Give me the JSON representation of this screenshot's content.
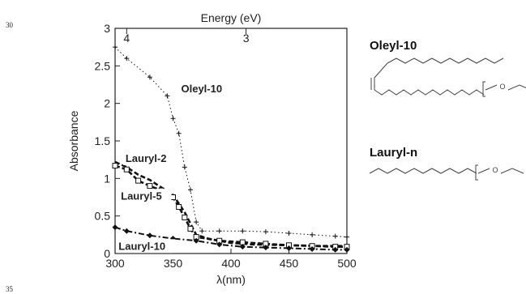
{
  "page": {
    "line_number_top": "30",
    "line_number_bottom": "35"
  },
  "chart_data": {
    "type": "line",
    "title": "",
    "xlabel": "λ(nm)",
    "ylabel": "Absorbance",
    "top_axis_label": "Energy (eV)",
    "xlim": [
      300,
      500
    ],
    "ylim": [
      0,
      3
    ],
    "x_ticks": [
      300,
      350,
      400,
      450,
      500
    ],
    "y_ticks": [
      0,
      0.5,
      1,
      1.5,
      2,
      2.5,
      3
    ],
    "top_ticks": [
      {
        "label": "4",
        "x_nm": 310
      },
      {
        "label": "3",
        "x_nm": 413
      }
    ],
    "grid": false,
    "series": [
      {
        "name": "Oleyl-10",
        "style": "dotted",
        "marker": "plus",
        "x": [
          300,
          310,
          330,
          345,
          350,
          355,
          360,
          365,
          370,
          375,
          390,
          410,
          430,
          450,
          470,
          490,
          500
        ],
        "y": [
          2.75,
          2.6,
          2.35,
          2.1,
          1.8,
          1.6,
          1.15,
          0.85,
          0.42,
          0.3,
          0.3,
          0.3,
          0.29,
          0.27,
          0.25,
          0.23,
          0.22
        ]
      },
      {
        "name": "Lauryl-2",
        "style": "dashed",
        "marker": "none",
        "x": [
          300,
          310,
          320,
          330,
          340,
          350,
          360,
          365,
          370,
          380,
          400,
          420,
          450,
          480,
          500
        ],
        "y": [
          1.22,
          1.15,
          1.05,
          0.98,
          0.88,
          0.78,
          0.55,
          0.4,
          0.25,
          0.2,
          0.14,
          0.12,
          0.11,
          0.1,
          0.1
        ]
      },
      {
        "name": "Lauryl-5",
        "style": "dashed",
        "marker": "open-square",
        "x": [
          300,
          310,
          320,
          330,
          340,
          345,
          350,
          355,
          360,
          365,
          370,
          390,
          410,
          430,
          450,
          470,
          490,
          500
        ],
        "y": [
          1.17,
          1.12,
          0.97,
          0.9,
          0.84,
          0.8,
          0.75,
          0.62,
          0.48,
          0.33,
          0.22,
          0.17,
          0.15,
          0.13,
          0.11,
          0.1,
          0.09,
          0.09
        ]
      },
      {
        "name": "Lauryl-10",
        "style": "dash-dot",
        "marker": "filled-diamond",
        "x": [
          300,
          310,
          330,
          350,
          370,
          390,
          410,
          430,
          450,
          470,
          490,
          500
        ],
        "y": [
          0.35,
          0.3,
          0.24,
          0.2,
          0.17,
          0.12,
          0.09,
          0.08,
          0.07,
          0.06,
          0.05,
          0.05
        ]
      }
    ],
    "annotations": [
      "Oleyl-10",
      "Lauryl-2",
      "Lauryl-5",
      "Lauryl-10"
    ]
  },
  "structures": [
    {
      "name": "Oleyl-10",
      "subscript": "n",
      "atom": "OH"
    },
    {
      "name": "Lauryl-n",
      "subscript": "n",
      "atom": "OH"
    }
  ]
}
